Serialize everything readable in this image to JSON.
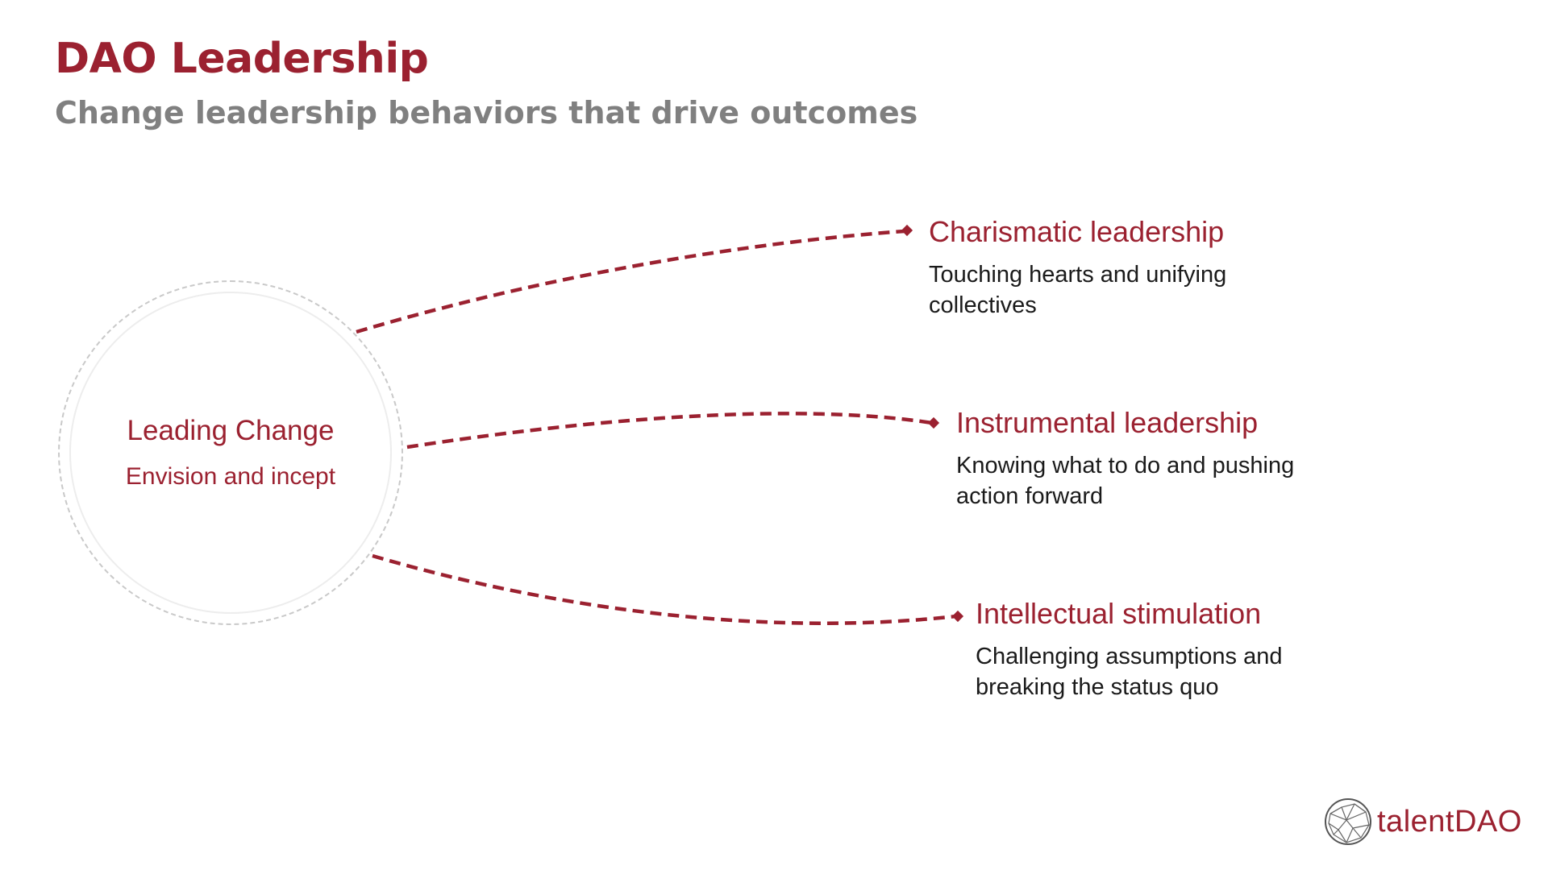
{
  "slide": {
    "title": "DAO Leadership",
    "subtitle": "Change leadership behaviors that drive outcomes"
  },
  "hub": {
    "title": "Leading Change",
    "subtitle": "Envision and incept"
  },
  "nodes": [
    {
      "title": "Charismatic leadership",
      "description": "Touching hearts and unifying collectives"
    },
    {
      "title": "Instrumental leadership",
      "description": "Knowing what to do and pushing action forward"
    },
    {
      "title": "Intellectual stimulation",
      "description": "Challenging assumptions and breaking the status quo"
    }
  ],
  "brand": {
    "logo_icon": "network-globe-icon",
    "name": "talentDAO"
  },
  "colors": {
    "accent": "#9b2130",
    "subtitle": "#808080",
    "body_text": "#1a1a1a",
    "circle_outline": "#c9c9c9"
  }
}
